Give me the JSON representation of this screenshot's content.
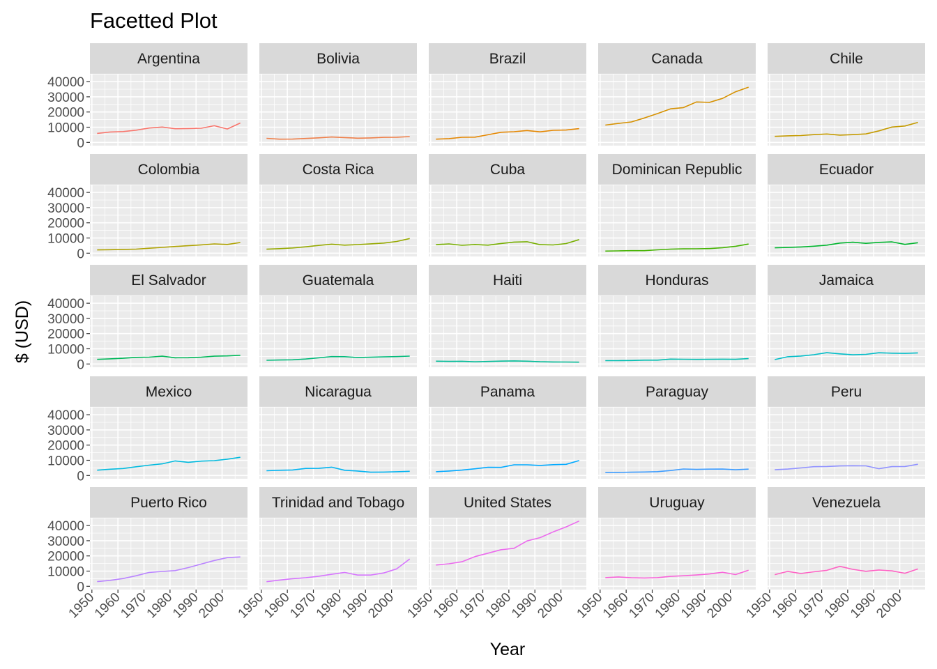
{
  "chart_data": {
    "type": "line",
    "layout": "facet-grid",
    "title": "Facetted Plot",
    "xlabel": "Year",
    "ylabel": "$ (USD)",
    "xlim": [
      1952,
      2007
    ],
    "ylim": [
      0,
      42951
    ],
    "x_ticks": [
      1950,
      1960,
      1970,
      1980,
      1990,
      2000
    ],
    "y_ticks": [
      0,
      10000,
      20000,
      30000,
      40000
    ],
    "grid": true,
    "legend": "none",
    "x": [
      1952,
      1957,
      1962,
      1967,
      1972,
      1977,
      1982,
      1987,
      1992,
      1997,
      2002,
      2007
    ],
    "series": [
      {
        "name": "Argentina",
        "color": "#F8766D",
        "values": [
          5911,
          6857,
          7133,
          8053,
          9443,
          10079,
          8998,
          9140,
          9308,
          10967,
          8798,
          12779
        ]
      },
      {
        "name": "Bolivia",
        "color": "#EF7F49",
        "values": [
          2677,
          2128,
          2181,
          2587,
          2980,
          3548,
          3157,
          2754,
          2962,
          3326,
          3413,
          3822
        ]
      },
      {
        "name": "Brazil",
        "color": "#E58700",
        "values": [
          2109,
          2487,
          3337,
          3430,
          4986,
          6660,
          7031,
          7807,
          6950,
          7958,
          8131,
          9066
        ]
      },
      {
        "name": "Canada",
        "color": "#D69100",
        "values": [
          11367,
          12490,
          13462,
          16077,
          18971,
          22091,
          22899,
          26627,
          26343,
          28955,
          33329,
          36319
        ]
      },
      {
        "name": "Chile",
        "color": "#C49A00",
        "values": [
          3940,
          4316,
          4519,
          5107,
          5494,
          4757,
          5096,
          5547,
          7597,
          10118,
          10779,
          13172
        ]
      },
      {
        "name": "Colombia",
        "color": "#AFA200",
        "values": [
          2144,
          2324,
          2493,
          2679,
          3265,
          3816,
          4398,
          4903,
          5445,
          6117,
          5755,
          7007
        ]
      },
      {
        "name": "Costa Rica",
        "color": "#96A900",
        "values": [
          2628,
          2990,
          3461,
          4162,
          5118,
          5927,
          5263,
          5629,
          6160,
          6677,
          7723,
          9645
        ]
      },
      {
        "name": "Cuba",
        "color": "#77AF00",
        "values": [
          5587,
          6093,
          5181,
          5690,
          5305,
          6380,
          7317,
          7533,
          5593,
          5432,
          6341,
          8948
        ]
      },
      {
        "name": "Dominican Republic",
        "color": "#44B300",
        "values": [
          1398,
          1544,
          1662,
          1653,
          2189,
          2682,
          2862,
          2899,
          3045,
          3614,
          4564,
          6025
        ]
      },
      {
        "name": "Ecuador",
        "color": "#00B52E",
        "values": [
          3522,
          3781,
          4086,
          4580,
          5281,
          6680,
          7213,
          6482,
          7104,
          7429,
          5773,
          6873
        ]
      },
      {
        "name": "El Salvador",
        "color": "#00B85A",
        "values": [
          3048,
          3421,
          3777,
          4359,
          4520,
          5139,
          4098,
          4141,
          4444,
          5154,
          5352,
          5728
        ]
      },
      {
        "name": "Guatemala",
        "color": "#00BA7A",
        "values": [
          2428,
          2617,
          2750,
          3243,
          4031,
          4880,
          4821,
          4247,
          4440,
          4684,
          4858,
          5186
        ]
      },
      {
        "name": "Haiti",
        "color": "#00BC97",
        "values": [
          1840,
          1726,
          1797,
          1452,
          1654,
          1875,
          2012,
          1823,
          1456,
          1342,
          1270,
          1202
        ]
      },
      {
        "name": "Honduras",
        "color": "#00BEB1",
        "values": [
          2195,
          2221,
          2292,
          2538,
          2529,
          3203,
          3121,
          3023,
          3082,
          3160,
          3099,
          3548
        ]
      },
      {
        "name": "Jamaica",
        "color": "#00BDC8",
        "values": [
          2899,
          4756,
          5246,
          6125,
          7434,
          6650,
          6068,
          6351,
          7404,
          7122,
          6995,
          7321
        ]
      },
      {
        "name": "Mexico",
        "color": "#00BADE",
        "values": [
          3478,
          4132,
          4582,
          5755,
          6809,
          7675,
          9611,
          8688,
          9472,
          9767,
          10742,
          11978
        ]
      },
      {
        "name": "Nicaragua",
        "color": "#00B3F1",
        "values": [
          3112,
          3457,
          3634,
          4644,
          4689,
          5486,
          3470,
          2955,
          2170,
          2253,
          2475,
          2749
        ]
      },
      {
        "name": "Panama",
        "color": "#00A9FF",
        "values": [
          2480,
          2961,
          3536,
          4421,
          5364,
          5351,
          7010,
          7034,
          6619,
          7113,
          7356,
          9809
        ]
      },
      {
        "name": "Paraguay",
        "color": "#3D9CFF",
        "values": [
          1952,
          2046,
          2148,
          2299,
          2523,
          3248,
          4259,
          3998,
          4197,
          4247,
          3784,
          4173
        ]
      },
      {
        "name": "Peru",
        "color": "#8F91FF",
        "values": [
          3759,
          4245,
          4957,
          5788,
          5938,
          6281,
          6435,
          6361,
          4446,
          5838,
          5909,
          7409
        ]
      },
      {
        "name": "Puerto Rico",
        "color": "#B983FF",
        "values": [
          3082,
          3908,
          5108,
          6929,
          9123,
          9771,
          10331,
          12281,
          14642,
          16999,
          18856,
          19329
        ]
      },
      {
        "name": "Trinidad and Tobago",
        "color": "#D675FE",
        "values": [
          3023,
          4100,
          4997,
          5621,
          6620,
          7900,
          9119,
          7388,
          7371,
          8792,
          11461,
          18009
        ]
      },
      {
        "name": "United States",
        "color": "#EB6AED",
        "values": [
          13990,
          14847,
          16173,
          19530,
          21806,
          24073,
          25010,
          29884,
          32004,
          35767,
          39097,
          42952
        ]
      },
      {
        "name": "Uruguay",
        "color": "#F864D9",
        "values": [
          5717,
          6150,
          5603,
          5445,
          5703,
          6504,
          6920,
          7452,
          8137,
          9231,
          7727,
          10611
        ]
      },
      {
        "name": "Venezuela",
        "color": "#FE61C3",
        "values": [
          7690,
          9802,
          8423,
          9541,
          10506,
          13144,
          11152,
          9884,
          10734,
          10165,
          8605,
          11416
        ]
      }
    ]
  }
}
